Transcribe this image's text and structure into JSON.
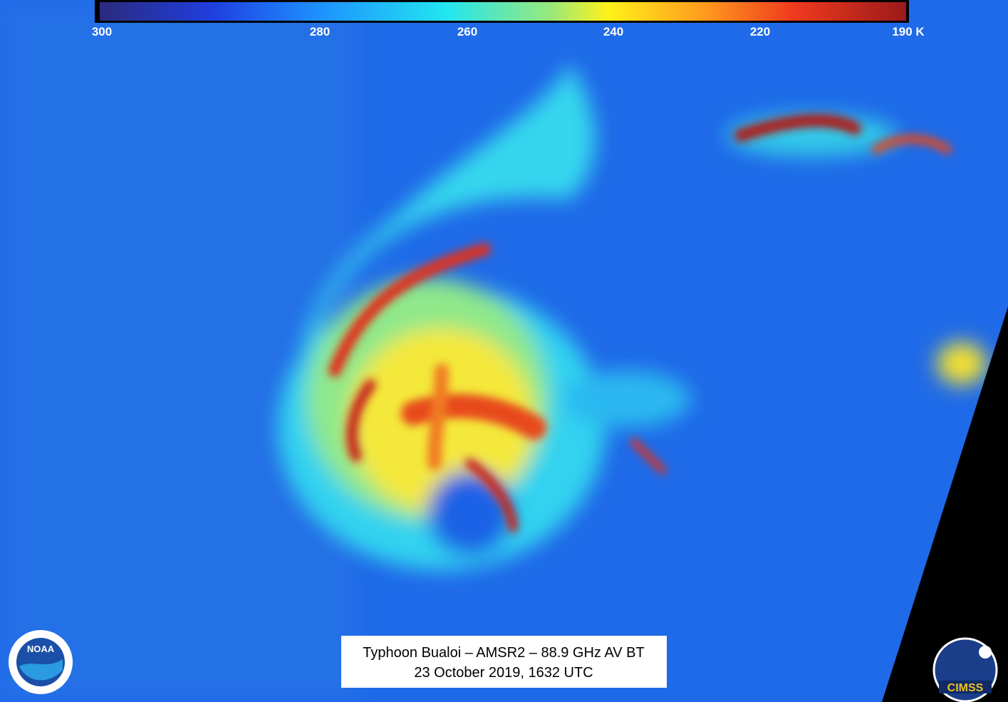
{
  "colorbar": {
    "labels": [
      "300",
      "280",
      "260",
      "240",
      "220",
      "190 K"
    ]
  },
  "caption": {
    "line1": "Typhoon Bualoi – AMSR2 – 88.9 GHz AV BT",
    "line2": "23 October 2019, 1632 UTC"
  },
  "logos": {
    "left": "NOAA",
    "right": "CIMSS"
  }
}
